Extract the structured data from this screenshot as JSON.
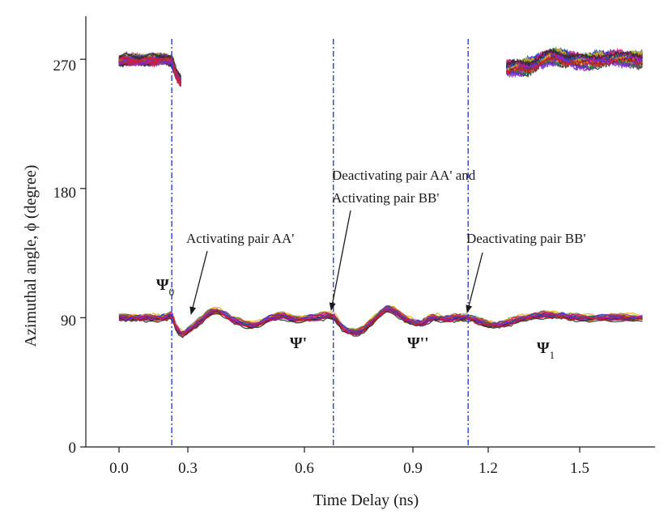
{
  "chart_data": {
    "type": "line",
    "title": "",
    "xlabel": "Time Delay (ns)",
    "ylabel": "Azimuthal angle, ϕ (degree)",
    "xlim": [
      -0.1,
      1.68
    ],
    "ylim": [
      0,
      300
    ],
    "xticks": [
      0.0,
      0.3,
      0.6,
      0.9,
      1.2,
      1.5
    ],
    "xtick_labels": [
      "0.0",
      "0.3",
      "0.6",
      "0.9",
      "1.2",
      "1.5"
    ],
    "yticks": [
      0,
      90,
      180,
      270
    ],
    "ytick_labels": [
      "0",
      "90",
      "180",
      "270"
    ],
    "vlines": [
      0.23,
      0.68,
      1.12
    ],
    "series_colors": [
      "#1f3fbf",
      "#c81e78",
      "#2a2a2a",
      "#7a2ad0",
      "#d0202a",
      "#1d8a3a",
      "#e0b020"
    ],
    "bundles": [
      {
        "name": "upper-left",
        "x": [
          0.0,
          0.05,
          0.1,
          0.15,
          0.2,
          0.22,
          0.23,
          0.25,
          0.27
        ],
        "y": [
          269,
          270,
          269,
          270,
          270,
          269,
          268,
          260,
          255
        ],
        "spread": 4
      },
      {
        "name": "upper-right",
        "x": [
          1.26,
          1.3,
          1.34,
          1.38,
          1.42,
          1.46,
          1.5,
          1.55,
          1.6,
          1.65
        ],
        "y": [
          263,
          264,
          266,
          269,
          272,
          270,
          268,
          270,
          270,
          270
        ],
        "spread": 6
      },
      {
        "name": "lower",
        "x": [
          0.0,
          0.1,
          0.2,
          0.23,
          0.25,
          0.28,
          0.32,
          0.37,
          0.42,
          0.47,
          0.53,
          0.58,
          0.63,
          0.68,
          0.71,
          0.75,
          0.78,
          0.83,
          0.88,
          0.93,
          0.98,
          1.03,
          1.08,
          1.12,
          1.17,
          1.22,
          1.26,
          1.3,
          1.35,
          1.4,
          1.5,
          1.6,
          1.65
        ],
        "y": [
          90,
          90,
          90,
          91,
          83,
          79,
          85,
          95,
          88,
          85,
          91,
          89,
          90,
          91,
          82,
          80,
          86,
          96,
          89,
          86,
          90,
          89,
          90,
          90,
          87,
          85,
          86,
          89,
          91,
          92,
          90,
          90,
          90
        ],
        "spread": 3
      }
    ],
    "annotations": [
      {
        "text": "Activating pair AA'",
        "arrow_to": [
          0.23,
          91
        ]
      },
      {
        "text": "Deactivating pair AA' and",
        "arrow_to": null
      },
      {
        "text": "Activating pair BB'",
        "arrow_to": [
          0.68,
          92
        ]
      },
      {
        "text": "Deactivating pair BB'",
        "arrow_to": [
          1.12,
          91
        ]
      }
    ],
    "state_labels": [
      {
        "symbol": "Ψ",
        "sub": "0",
        "prime": ""
      },
      {
        "symbol": "Ψ",
        "sub": "",
        "prime": "'"
      },
      {
        "symbol": "Ψ",
        "sub": "",
        "prime": "''"
      },
      {
        "symbol": "Ψ",
        "sub": "1",
        "prime": ""
      }
    ]
  }
}
